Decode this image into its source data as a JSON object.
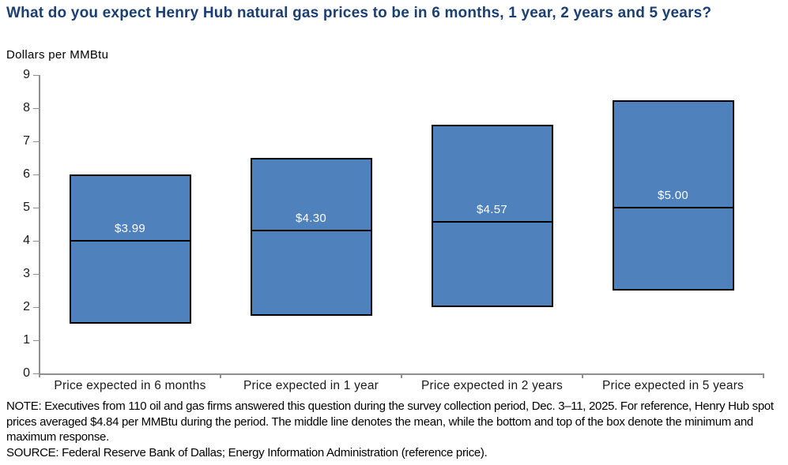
{
  "header": {
    "title": "What do you expect Henry Hub natural gas prices to be in 6 months, 1 year, 2 years and 5 years?",
    "units_label": "Dollars per MMBtu"
  },
  "chart_data": {
    "type": "box",
    "title": "What do you expect Henry Hub natural gas prices to be in 6 months, 1 year, 2 years and 5 years?",
    "ylabel": "Dollars per MMBtu",
    "xlabel": "",
    "ylim": [
      0,
      9
    ],
    "yticks": [
      0,
      1,
      2,
      3,
      4,
      5,
      6,
      7,
      8,
      9
    ],
    "grid": false,
    "legend": "none",
    "categories": [
      "Price expected in 6 months",
      "Price expected in 1 year",
      "Price expected in 2 years",
      "Price expected in 5 years"
    ],
    "series": [
      {
        "category": "Price expected in 6 months",
        "min": 1.5,
        "max": 6.0,
        "mean": 3.99,
        "mean_label": "$3.99"
      },
      {
        "category": "Price expected in 1 year",
        "min": 1.75,
        "max": 6.5,
        "mean": 4.3,
        "mean_label": "$4.30"
      },
      {
        "category": "Price expected in 2 years",
        "min": 2.0,
        "max": 7.5,
        "mean": 4.57,
        "mean_label": "$4.57"
      },
      {
        "category": "Price expected in 5 years",
        "min": 2.5,
        "max": 8.25,
        "mean": 5.0,
        "mean_label": "$5.00"
      }
    ],
    "colors": {
      "title": "#1b3f72",
      "box_fill": "#4f81bd",
      "box_border": "#000000",
      "mean_line": "#000000",
      "box_label_text": "#ffffff",
      "axis_line": "#8f8f8f",
      "tick_label": "#1a1a1a"
    }
  },
  "footer": {
    "note": "NOTE: Executives from 110 oil and gas firms answered this question during the survey collection period, Dec. 3–11, 2025. For reference, Henry Hub spot prices averaged $4.84 per MMBtu during the period. The middle line denotes the mean, while the bottom and top of the box denote the minimum and maximum  response.",
    "source": "SOURCE: Federal Reserve Bank of Dallas; Energy Information Administration (reference price)."
  }
}
